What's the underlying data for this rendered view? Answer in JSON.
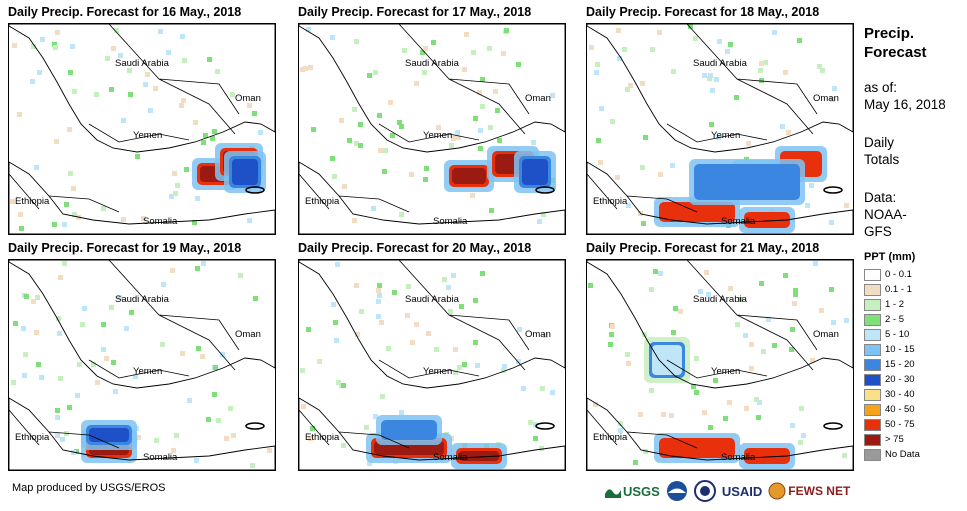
{
  "panels": [
    {
      "title": "Daily Precip. Forecast for 16 May., 2018",
      "storm_blobs": [
        {
          "region": "gulf-of-aden-east",
          "category": "> 75",
          "intensity": "heavy"
        },
        {
          "region": "arabian-sea-west",
          "category": "20 - 30",
          "intensity": "moderate"
        }
      ]
    },
    {
      "title": "Daily Precip. Forecast for 17 May., 2018",
      "storm_blobs": [
        {
          "region": "gulf-of-aden-central",
          "category": "> 75",
          "intensity": "heavy"
        },
        {
          "region": "arabian-sea-west",
          "category": "20 - 30",
          "intensity": "moderate"
        }
      ]
    },
    {
      "title": "Daily Precip. Forecast for 18 May., 2018",
      "storm_blobs": [
        {
          "region": "gulf-of-aden-central",
          "category": "50 - 75",
          "intensity": "heavy"
        },
        {
          "region": "somalia-north",
          "category": "50 - 75",
          "intensity": "heavy"
        },
        {
          "region": "arabian-sea-wide",
          "category": "15 - 20",
          "intensity": "moderate"
        }
      ]
    },
    {
      "title": "Daily Precip. Forecast for 19 May., 2018",
      "storm_blobs": [
        {
          "region": "somalia-north-west",
          "category": "> 75",
          "intensity": "heavy"
        },
        {
          "region": "gulf-of-aden-west",
          "category": "20 - 30",
          "intensity": "moderate"
        }
      ]
    },
    {
      "title": "Daily Precip. Forecast for 20 May., 2018",
      "storm_blobs": [
        {
          "region": "somalia-north",
          "category": "> 75",
          "intensity": "heavy"
        },
        {
          "region": "gulf-of-aden-south",
          "category": "15 - 20",
          "intensity": "moderate"
        }
      ]
    },
    {
      "title": "Daily Precip. Forecast for 21 May., 2018",
      "storm_blobs": [
        {
          "region": "somalia-north",
          "category": "50 - 75",
          "intensity": "heavy"
        },
        {
          "region": "yemen-highlands",
          "category": "5 - 10",
          "intensity": "light"
        }
      ]
    }
  ],
  "map_labels": {
    "saudi": "Saudi Arabia",
    "oman": "Oman",
    "yemen": "Yemen",
    "ethiopia": "Ethiopia",
    "somalia": "Somalia"
  },
  "sidebar": {
    "title_line1": "Precip.",
    "title_line2": "Forecast",
    "asof_line1": "as of:",
    "asof_line2": "May 16, 2018",
    "daily_line1": "Daily",
    "daily_line2": "Totals",
    "data_line1": "Data:",
    "data_line2": "NOAA-",
    "data_line3": "GFS"
  },
  "legend": {
    "title": "PPT (mm)",
    "items": [
      {
        "label": "0 - 0.1",
        "color": "#ffffff"
      },
      {
        "label": "0.1 - 1",
        "color": "#f2dcc4"
      },
      {
        "label": "1 - 2",
        "color": "#c6efc0"
      },
      {
        "label": "2 - 5",
        "color": "#7fdf7a"
      },
      {
        "label": "5 - 10",
        "color": "#bfe6f8"
      },
      {
        "label": "10 - 15",
        "color": "#7fc3f2"
      },
      {
        "label": "15 - 20",
        "color": "#3a86e0"
      },
      {
        "label": "20 - 30",
        "color": "#1e50c8"
      },
      {
        "label": "30 - 40",
        "color": "#fbe08a"
      },
      {
        "label": "40 - 50",
        "color": "#f7a21b"
      },
      {
        "label": "50 - 75",
        "color": "#e8300c"
      },
      {
        "label": "> 75",
        "color": "#9b1b12"
      },
      {
        "label": "No Data",
        "color": "#9a9a9a"
      }
    ]
  },
  "credit": "Map produced by USGS/EROS",
  "logos": {
    "usgs": "USGS",
    "usaid": "USAID",
    "fewsnet": "FEWS NET"
  }
}
